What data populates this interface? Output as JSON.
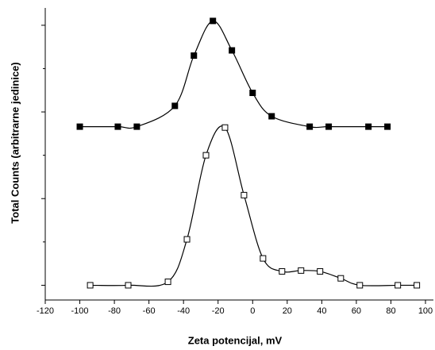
{
  "chart_data": {
    "type": "line",
    "xlabel": "Zeta potencijal, mV",
    "ylabel": "Total Counts (arbitrarne jedinice)",
    "xlim": [
      -120,
      100
    ],
    "xticks": [
      -120,
      -100,
      -80,
      -60,
      -40,
      -20,
      0,
      20,
      40,
      60,
      80,
      100
    ],
    "ylim": [
      -0.17,
      3.2
    ],
    "yticks": [
      0,
      0.5,
      1,
      1.5,
      2,
      2.5,
      3
    ],
    "series": [
      {
        "marker": "filled",
        "color": "#000000",
        "x": [
          -100,
          -78,
          -67,
          -45,
          -34,
          -23,
          -12,
          0,
          11,
          33,
          44,
          67,
          78
        ],
        "values": [
          1.83,
          1.83,
          1.83,
          2.07,
          2.65,
          3.05,
          2.71,
          2.22,
          1.95,
          1.83,
          1.83,
          1.83,
          1.83
        ]
      },
      {
        "marker": "open",
        "color": "#000000",
        "x": [
          -94,
          -72,
          -49,
          -38,
          -27,
          -16,
          -5,
          6,
          17,
          28,
          39,
          51,
          62,
          84,
          95
        ],
        "values": [
          0,
          0,
          0.04,
          0.53,
          1.5,
          1.82,
          1.04,
          0.31,
          0.16,
          0.17,
          0.16,
          0.08,
          0,
          0,
          0
        ]
      }
    ]
  }
}
